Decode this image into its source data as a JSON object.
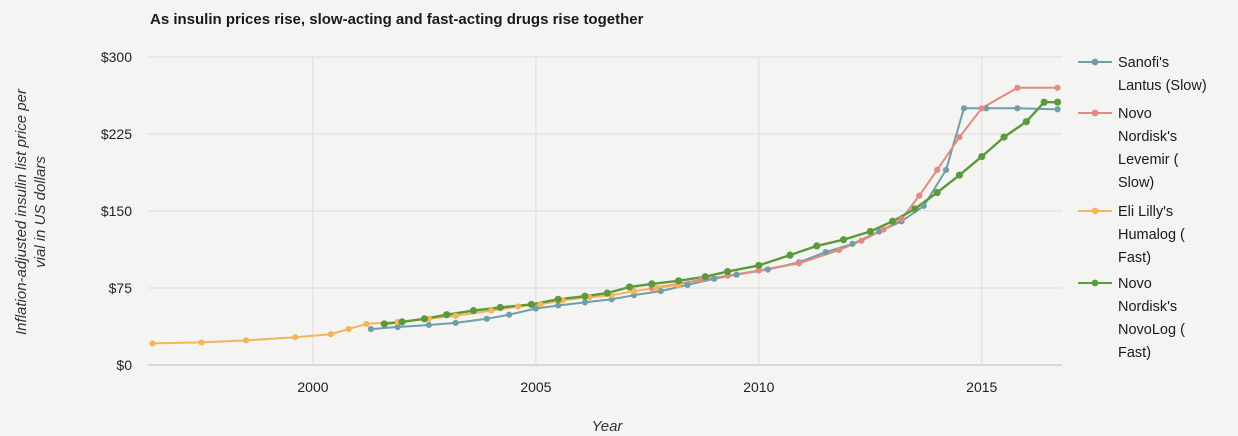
{
  "chart_data": {
    "type": "line",
    "title": "As insulin prices rise, slow-acting and fast-acting drugs rise together",
    "xlabel": "Year",
    "ylabel_lines": [
      "Inflation-adjusted insulin list price per",
      "vial in US dollars"
    ],
    "xlim": [
      1996.3,
      2016.8
    ],
    "ylim": [
      0,
      300
    ],
    "x_ticks": [
      {
        "value": 2000,
        "label": "2000"
      },
      {
        "value": 2005,
        "label": "2005"
      },
      {
        "value": 2010,
        "label": "2010"
      },
      {
        "value": 2015,
        "label": "2015"
      }
    ],
    "y_ticks": [
      {
        "value": 0,
        "label": "$0"
      },
      {
        "value": 75,
        "label": "$75"
      },
      {
        "value": 150,
        "label": "$150"
      },
      {
        "value": 225,
        "label": "$225"
      },
      {
        "value": 300,
        "label": "$300"
      }
    ],
    "grid": true,
    "legend_position": "right",
    "series": [
      {
        "name": "Sanofi's Lantus (Slow)",
        "legend_lines": [
          "Sanofi's",
          "Lantus (Slow)"
        ],
        "color": "#6f9ea8",
        "points": [
          [
            2001.3,
            35
          ],
          [
            2001.9,
            37
          ],
          [
            2002.6,
            39
          ],
          [
            2003.2,
            41
          ],
          [
            2003.9,
            45
          ],
          [
            2004.4,
            49
          ],
          [
            2005.0,
            55
          ],
          [
            2005.5,
            58
          ],
          [
            2006.1,
            61
          ],
          [
            2006.7,
            64
          ],
          [
            2007.2,
            68
          ],
          [
            2007.8,
            72
          ],
          [
            2008.4,
            78
          ],
          [
            2009.0,
            84
          ],
          [
            2009.5,
            88
          ],
          [
            2010.2,
            93
          ],
          [
            2010.9,
            100
          ],
          [
            2011.5,
            110
          ],
          [
            2012.1,
            118
          ],
          [
            2012.7,
            130
          ],
          [
            2013.2,
            140
          ],
          [
            2013.7,
            155
          ],
          [
            2014.2,
            190
          ],
          [
            2014.6,
            250
          ],
          [
            2015.1,
            250
          ],
          [
            2015.8,
            250
          ],
          [
            2016.7,
            249
          ]
        ]
      },
      {
        "name": "Novo Nordisk's Levemir ( Slow)",
        "legend_lines": [
          "Novo",
          "Nordisk's",
          "Levemir (",
          "Slow)"
        ],
        "color": "#e58a7e",
        "points": [
          [
            2007.6,
            75
          ],
          [
            2008.2,
            79
          ],
          [
            2008.7,
            83
          ],
          [
            2009.3,
            87
          ],
          [
            2010.0,
            92
          ],
          [
            2010.9,
            99
          ],
          [
            2011.8,
            112
          ],
          [
            2012.3,
            121
          ],
          [
            2012.8,
            132
          ],
          [
            2013.2,
            142
          ],
          [
            2013.6,
            165
          ],
          [
            2014.0,
            190
          ],
          [
            2014.5,
            222
          ],
          [
            2015.0,
            250
          ],
          [
            2015.8,
            270
          ],
          [
            2016.7,
            270
          ]
        ]
      },
      {
        "name": "Eli Lilly's Humalog ( Fast)",
        "legend_lines": [
          "Eli Lilly's",
          "Humalog (",
          "Fast)"
        ],
        "color": "#f4b45a",
        "points": [
          [
            1996.4,
            21
          ],
          [
            1997.5,
            22
          ],
          [
            1998.5,
            24
          ],
          [
            1999.6,
            27
          ],
          [
            2000.4,
            30
          ],
          [
            2000.8,
            35
          ],
          [
            2001.2,
            40
          ],
          [
            2001.9,
            42
          ],
          [
            2002.6,
            45
          ],
          [
            2003.2,
            48
          ],
          [
            2004.0,
            53
          ],
          [
            2004.6,
            57
          ],
          [
            2005.1,
            59
          ],
          [
            2005.6,
            63
          ],
          [
            2006.2,
            66
          ],
          [
            2006.7,
            68
          ],
          [
            2007.2,
            72
          ],
          [
            2007.7,
            75
          ],
          [
            2008.2,
            78
          ]
        ]
      },
      {
        "name": "Novo Nordisk's NovoLog ( Fast)",
        "legend_lines": [
          "Novo",
          "Nordisk's",
          "NovoLog (",
          "Fast)"
        ],
        "color": "#5a9a3d",
        "points": [
          [
            2001.6,
            40
          ],
          [
            2002.0,
            42
          ],
          [
            2002.5,
            45
          ],
          [
            2003.0,
            49
          ],
          [
            2003.6,
            53
          ],
          [
            2004.2,
            56
          ],
          [
            2004.9,
            59
          ],
          [
            2005.5,
            64
          ],
          [
            2006.1,
            67
          ],
          [
            2006.6,
            70
          ],
          [
            2007.1,
            76
          ],
          [
            2007.6,
            79
          ],
          [
            2008.2,
            82
          ],
          [
            2008.8,
            86
          ],
          [
            2009.3,
            91
          ],
          [
            2010.0,
            97
          ],
          [
            2010.7,
            107
          ],
          [
            2011.3,
            116
          ],
          [
            2011.9,
            122
          ],
          [
            2012.5,
            130
          ],
          [
            2013.0,
            140
          ],
          [
            2013.5,
            152
          ],
          [
            2014.0,
            168
          ],
          [
            2014.5,
            185
          ],
          [
            2015.0,
            203
          ],
          [
            2015.5,
            222
          ],
          [
            2016.0,
            237
          ],
          [
            2016.4,
            256
          ],
          [
            2016.7,
            256
          ]
        ]
      }
    ]
  }
}
